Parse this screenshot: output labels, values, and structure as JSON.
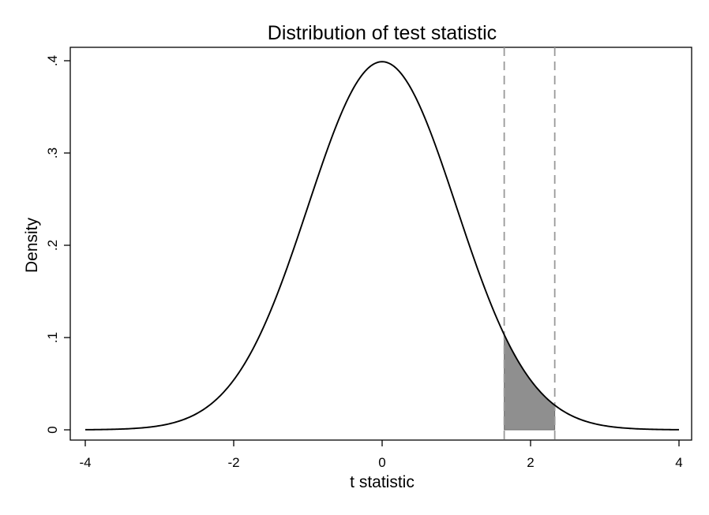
{
  "chart_data": {
    "type": "line",
    "title": "Distribution of test statistic",
    "xlabel": "t statistic",
    "ylabel": "Density",
    "xlim": [
      -4,
      4
    ],
    "ylim": [
      0,
      0.4
    ],
    "x_ticks": [
      -4,
      -2,
      0,
      2,
      4
    ],
    "x_tick_labels": [
      "-4",
      "-2",
      "0",
      "2",
      "4"
    ],
    "y_ticks": [
      0,
      0.1,
      0.2,
      0.3,
      0.4
    ],
    "y_tick_labels": [
      "0",
      ".1",
      ".2",
      ".3",
      ".4"
    ],
    "grid": false,
    "series": [
      {
        "type": "line",
        "color": "#000000",
        "x": [
          -4.0,
          -3.8,
          -3.6,
          -3.4,
          -3.2,
          -3.0,
          -2.8,
          -2.6,
          -2.4,
          -2.2,
          -2.0,
          -1.8,
          -1.6,
          -1.4,
          -1.2,
          -1.0,
          -0.8,
          -0.6,
          -0.4,
          -0.2,
          0.0,
          0.2,
          0.4,
          0.6,
          0.8,
          1.0,
          1.2,
          1.4,
          1.6,
          1.8,
          2.0,
          2.2,
          2.4,
          2.6,
          2.8,
          3.0,
          3.2,
          3.4,
          3.6,
          3.8,
          4.0
        ],
        "y": [
          0.0001,
          0.0003,
          0.0006,
          0.0012,
          0.0024,
          0.0044,
          0.0079,
          0.0136,
          0.0224,
          0.0355,
          0.054,
          0.079,
          0.1109,
          0.1497,
          0.1942,
          0.242,
          0.2897,
          0.3332,
          0.3683,
          0.391,
          0.3989,
          0.391,
          0.3683,
          0.3332,
          0.2897,
          0.242,
          0.1942,
          0.1497,
          0.1109,
          0.079,
          0.054,
          0.0355,
          0.0224,
          0.0136,
          0.0079,
          0.0044,
          0.0024,
          0.0012,
          0.0006,
          0.0003,
          0.0001
        ]
      }
    ],
    "shaded_region": {
      "x_from": 1.645,
      "x_to": 2.326,
      "fill": "#8f8f8f",
      "x": [
        1.645,
        1.7,
        1.8,
        1.9,
        2.0,
        2.1,
        2.2,
        2.326
      ],
      "y": [
        0.1031,
        0.094,
        0.079,
        0.0656,
        0.054,
        0.044,
        0.0355,
        0.0267
      ]
    },
    "reference_lines": [
      {
        "orientation": "vertical",
        "x": 1.645,
        "style": "dashed",
        "color": "#999999"
      },
      {
        "orientation": "vertical",
        "x": 2.326,
        "style": "dashed",
        "color": "#999999"
      }
    ]
  }
}
